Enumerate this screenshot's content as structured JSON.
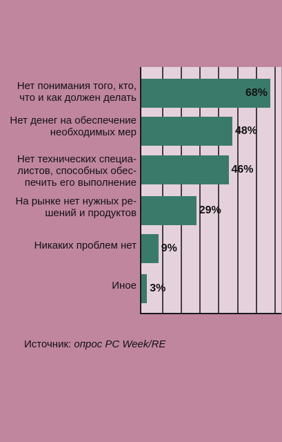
{
  "chart_data": {
    "type": "bar",
    "orientation": "horizontal",
    "categories": [
      "Нет понимания того, кто,\nчто и как должен делать",
      "Нет денег на обеспечение\nнеобходимых мер",
      "Нет технических специа-\nлистов, способных обес-\nпечить его выполнение",
      "На рынке нет нужных ре-\nшений и продуктов",
      "Никаких проблем нет",
      "Иное"
    ],
    "values": [
      68,
      48,
      46,
      29,
      9,
      3
    ],
    "value_labels": [
      "68%",
      "48%",
      "46%",
      "29%",
      "9%",
      "3%"
    ],
    "xlim": [
      0,
      70
    ],
    "grid": true,
    "colors": {
      "background": "#c0869e",
      "plot": "#e5d1dc",
      "bar": "#3a7a6b",
      "grid": "#1a1a1a"
    }
  },
  "source": {
    "prefix": "Источник: ",
    "text": "опрос PC Week/RE"
  }
}
